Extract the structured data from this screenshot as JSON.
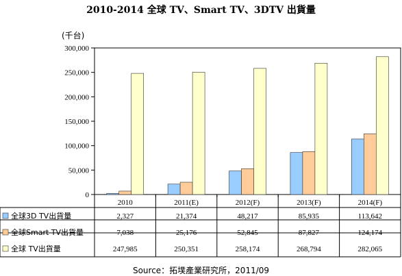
{
  "title": "2010-2014 全球 TV、Smart TV、3DTV 出貨量",
  "unit": "(千台)",
  "source": "Source：拓墣產業研究所，2011/09",
  "colors": {
    "series_3d": "#99CCFF",
    "series_smart": "#FFCC99",
    "series_tv": "#FFFFCC",
    "bar_stroke": "#333333"
  },
  "chart_data": {
    "type": "bar",
    "categories": [
      "2010",
      "2011(E)",
      "2012(F)",
      "2013(F)",
      "2014(F)"
    ],
    "ylim": [
      0,
      300000
    ],
    "yticks": [
      "0",
      "50,000",
      "100,000",
      "150,000",
      "200,000",
      "250,000",
      "300,000"
    ],
    "series": [
      {
        "name": "全球3D TV出貨量",
        "values": [
          2327,
          21374,
          48217,
          85935,
          113642
        ],
        "labels": [
          "2,327",
          "21,374",
          "48,217",
          "85,935",
          "113,642"
        ],
        "color": "#99CCFF"
      },
      {
        "name": "全球Smart TV出貨量",
        "values": [
          7038,
          25176,
          52845,
          87827,
          124174
        ],
        "labels": [
          "7,038",
          "25,176",
          "52,845",
          "87,827",
          "124,174"
        ],
        "color": "#FFCC99"
      },
      {
        "name": "全球 TV出貨量",
        "values": [
          247985,
          250351,
          258174,
          268794,
          282065
        ],
        "labels": [
          "247,985",
          "250,351",
          "258,174",
          "268,794",
          "282,065"
        ],
        "color": "#FFFFCC"
      }
    ]
  }
}
